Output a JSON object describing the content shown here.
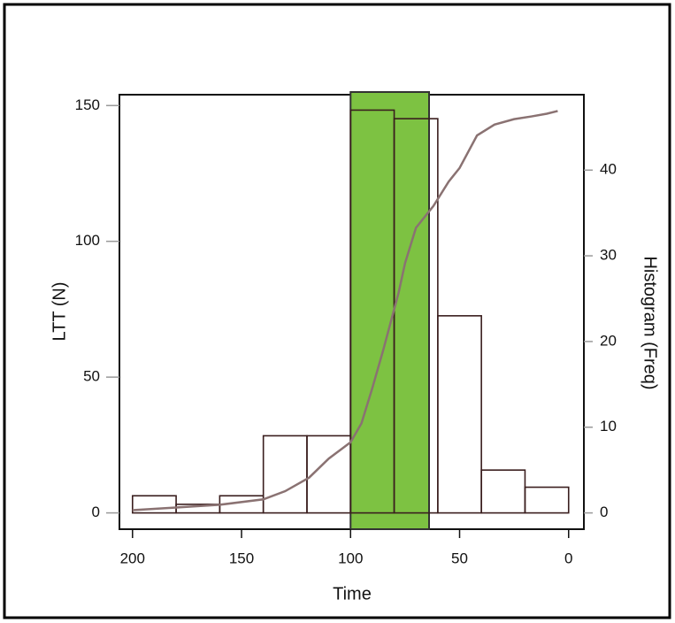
{
  "chart_data": {
    "type": "line",
    "x": [
      200,
      180,
      160,
      140,
      130,
      119,
      110,
      100,
      95,
      90,
      85,
      78,
      75,
      70,
      62,
      55,
      50,
      42,
      34,
      25,
      17,
      10,
      5
    ],
    "values": [
      1,
      2,
      3,
      5,
      8,
      13,
      20,
      26,
      33,
      46,
      60,
      81,
      92,
      105,
      113,
      122,
      127,
      139,
      143,
      145,
      146,
      147,
      148
    ],
    "color": "#8a7272",
    "xlabel": "Time",
    "ylabel": "LTT (N)",
    "y2label": "Histogram (Freq)",
    "xlim": [
      206,
      -7
    ],
    "ylim": [
      -6,
      154
    ],
    "y2lim": [
      -1.9,
      48.8
    ],
    "xticks": [
      200,
      150,
      100,
      50,
      0
    ],
    "yticks": [
      0,
      50,
      100,
      150
    ],
    "y2ticks": [
      0,
      10,
      20,
      30,
      40
    ],
    "histogram": {
      "type": "histogram",
      "bins": [
        200,
        180,
        160,
        140,
        120,
        100,
        80,
        60,
        40,
        20,
        0
      ],
      "counts": [
        2,
        1,
        2,
        9,
        9,
        47,
        46,
        23,
        5,
        3
      ],
      "axis": "y2",
      "color": "#3a1e1e"
    },
    "highlight": {
      "xrange": [
        100,
        64
      ],
      "color": "#7dc242"
    }
  }
}
